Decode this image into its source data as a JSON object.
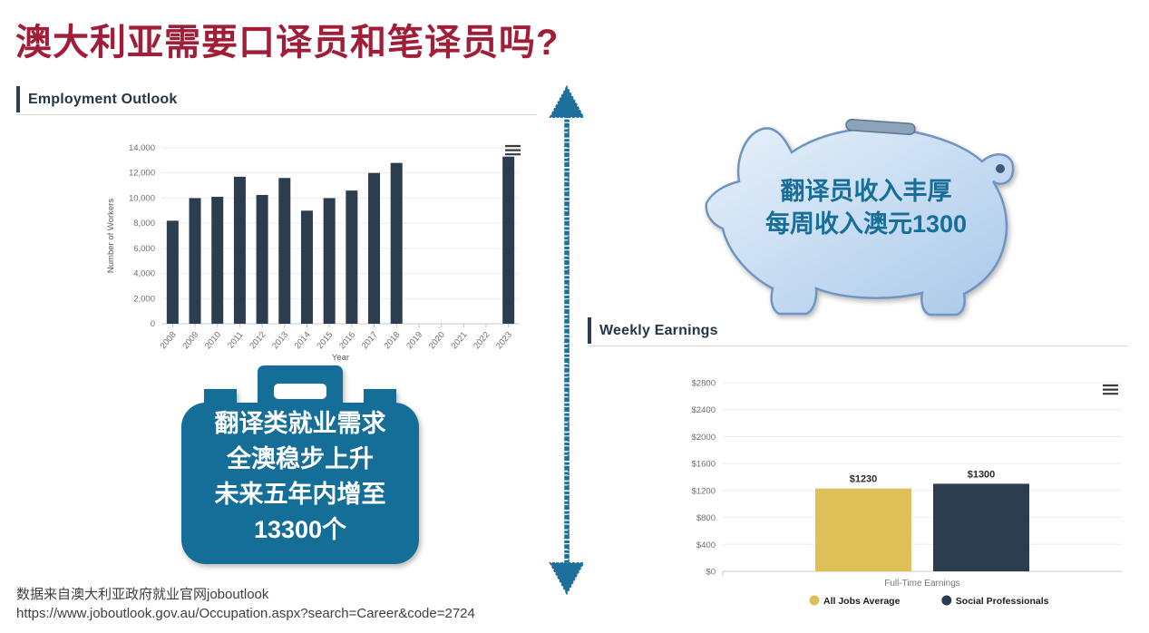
{
  "page": {
    "title": "澳大利亚需要口译员和笔译员吗?",
    "source_line1": "数据来自澳大利亚政府就业官网joboutlook",
    "source_line2": "https://www.joboutlook.gov.au/Occupation.aspx?search=Career&code=2724"
  },
  "sections": {
    "employment": {
      "header": "Employment Outlook"
    },
    "earnings": {
      "header": "Weekly Earnings"
    }
  },
  "callouts": {
    "piggy_bank": {
      "line1": "翻译员收入丰厚",
      "line2": "每周收入澳元1300"
    },
    "briefcase": {
      "line1": "翻译类就业需求",
      "line2": "全澳稳步上升",
      "line3": "未来五年内增至",
      "line4": "13300个"
    }
  },
  "colors": {
    "title_red": "#A11E38",
    "header_navy": "#253646",
    "bar_navy": "#2B3D4F",
    "gold": "#DDC058",
    "teal": "#1A6E99",
    "pig_fill_light": "#E2EEFA",
    "pig_fill_dark": "#A8C8E9"
  },
  "chart_data": [
    {
      "type": "bar",
      "title": "Employment Outlook",
      "categories": [
        "2008",
        "2009",
        "2010",
        "2011",
        "2012",
        "2013",
        "2014",
        "2015",
        "2016",
        "2017",
        "2018",
        "2019",
        "2020",
        "2021",
        "2022",
        "2023"
      ],
      "values": [
        8200,
        10000,
        10100,
        11700,
        10250,
        11600,
        9000,
        10000,
        10600,
        12000,
        12800,
        null,
        null,
        null,
        null,
        13300
      ],
      "xlabel": "Year",
      "ylabel": "Number of Workers",
      "ylim": [
        0,
        14000
      ],
      "ytick_step": 2000,
      "bar_color": "#2B3D4F",
      "grid": true,
      "legend_position": "none",
      "menu_icon": true
    },
    {
      "type": "bar",
      "title": "Weekly Earnings",
      "categories": [
        "Full-Time Earnings"
      ],
      "series": [
        {
          "name": "All Jobs Average",
          "values": [
            1230
          ],
          "color": "#DDC058",
          "data_label": "$1230"
        },
        {
          "name": "Social Professionals",
          "values": [
            1300
          ],
          "color": "#2B3D4F",
          "data_label": "$1300"
        }
      ],
      "xlabel": "Full-Time Earnings",
      "ylim": [
        0,
        2800
      ],
      "ytick_step": 400,
      "ytick_prefix": "$",
      "grid": true,
      "legend_position": "bottom",
      "menu_icon": true
    }
  ]
}
